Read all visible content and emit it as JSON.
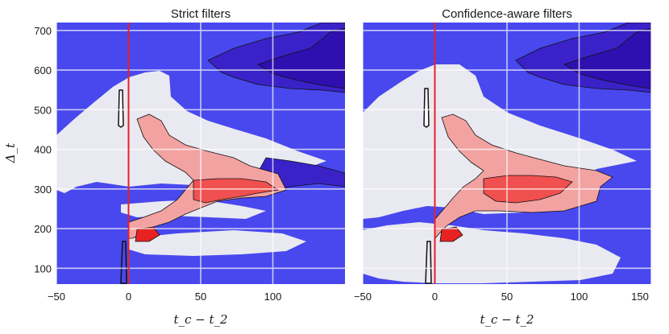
{
  "chart_data": [
    {
      "type": "heatmap",
      "title": "Strict filters",
      "xlabel": "t_c − t_2",
      "ylabel": "Δ_t",
      "xlim": [
        -50,
        150
      ],
      "ylim": [
        60,
        720
      ],
      "xticks": [
        -50,
        0,
        50,
        100
      ],
      "yticks": [
        100,
        200,
        300,
        400,
        500,
        600,
        700
      ],
      "grid": true,
      "vertical_line": {
        "x": 0,
        "color": "#e8202a"
      },
      "colors": {
        "background": "#e9e9f1",
        "low": "#4040f0",
        "mid_low": "#3a22c8",
        "high_light": "#f3a2a2",
        "high": "#f05050",
        "peak": "#e82222",
        "contour": "#111111"
      }
    },
    {
      "type": "heatmap",
      "title": "Confidence-aware filters",
      "xlabel": "t_c − t_2",
      "ylabel": "",
      "xlim": [
        -50,
        150
      ],
      "ylim": [
        60,
        720
      ],
      "xticks": [
        -50,
        0,
        50,
        100,
        150
      ],
      "yticks": [
        100,
        200,
        300,
        400,
        500,
        600,
        700
      ],
      "grid": true,
      "vertical_line": {
        "x": 0,
        "color": "#e8202a"
      },
      "colors": {
        "background": "#e9e9f1",
        "low": "#4040f0",
        "mid_low": "#3a22c8",
        "high_light": "#f3a2a2",
        "high": "#f05050",
        "peak": "#e82222",
        "contour": "#111111"
      }
    }
  ]
}
